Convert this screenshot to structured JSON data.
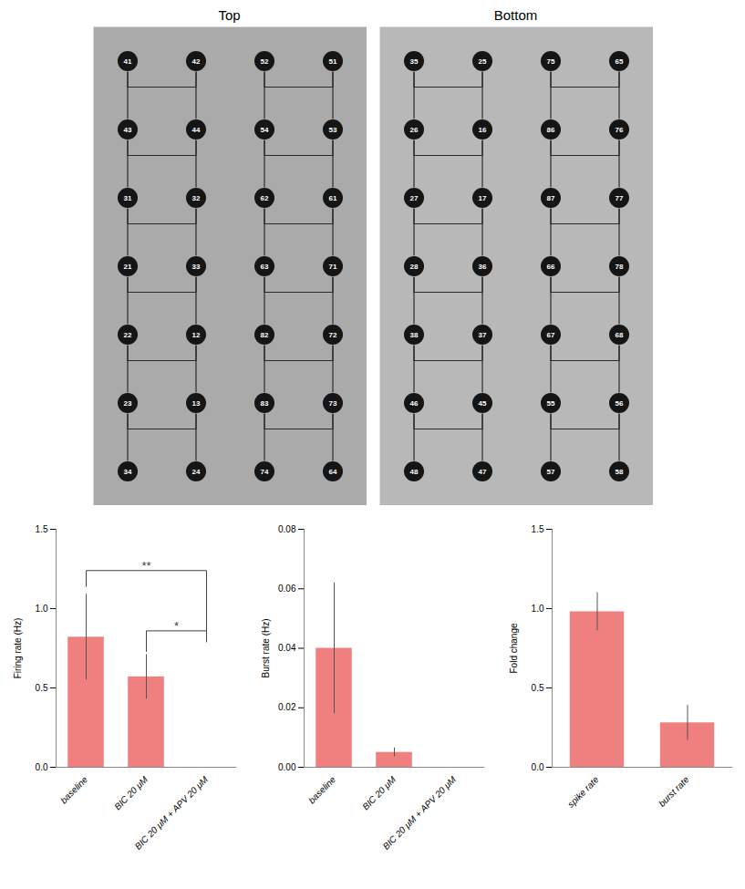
{
  "chart_data": [
    {
      "type": "electrode_map",
      "title": "Top",
      "color": "#aaaaaa",
      "labels": [
        "41",
        "42",
        "52",
        "51",
        "43",
        "44",
        "54",
        "53",
        "31",
        "32",
        "62",
        "61",
        "21",
        "33",
        "63",
        "71",
        "22",
        "12",
        "82",
        "72",
        "23",
        "13",
        "83",
        "73",
        "34",
        "24",
        "74",
        "64"
      ]
    },
    {
      "type": "electrode_map",
      "title": "Bottom",
      "color": "#b8b8b8",
      "labels": [
        "35",
        "25",
        "75",
        "65",
        "26",
        "16",
        "86",
        "76",
        "27",
        "17",
        "87",
        "77",
        "28",
        "36",
        "66",
        "78",
        "38",
        "37",
        "67",
        "68",
        "46",
        "45",
        "55",
        "56",
        "48",
        "47",
        "57",
        "58"
      ]
    },
    {
      "type": "bar",
      "color": "#F08080",
      "categories": [
        "baseline",
        "BIC 20 μM",
        "BIC 20 μM + APV 20 μM"
      ],
      "values": [
        0.82,
        0.57,
        0.0
      ],
      "errors": [
        0.27,
        0.14,
        0.0
      ],
      "ylabel": "Firing rate (Hz)",
      "ylim": [
        0,
        1.5
      ],
      "yticks": [
        {
          "value": 0,
          "label": "0.0"
        },
        0.5,
        {
          "value": 1,
          "label": "1.0"
        },
        1.5
      ],
      "annotations": [
        {
          "text": "**",
          "from": "baseline",
          "to": "BIC 20 μM + APV 20 μM",
          "y": 1.24,
          "ends": [
            1.14,
            0.79
          ],
          "color": "#444444"
        },
        {
          "text": "*",
          "from": "BIC 20 μM",
          "to": "BIC 20 μM + APV 20 μM",
          "y": 0.86,
          "ends": [
            0.73,
            0.86
          ],
          "color": "#444444"
        }
      ]
    },
    {
      "type": "bar",
      "color": "#F08080",
      "categories": [
        "baseline",
        "BIC 20 μM",
        "BIC 20 μM + APV 20 μM"
      ],
      "values": [
        0.04,
        0.005,
        0.0
      ],
      "errors": [
        0.022,
        0.0015,
        0.0
      ],
      "ylabel": "Burst rate (Hz)",
      "ylim": [
        0,
        0.08
      ],
      "yticks": [
        {
          "value": 0,
          "label": "0.00"
        },
        {
          "value": 0.02,
          "label": "0.02"
        },
        {
          "value": 0.04,
          "label": "0.04"
        },
        {
          "value": 0.06,
          "label": "0.06"
        },
        {
          "value": 0.08,
          "label": "0.08"
        }
      ]
    },
    {
      "type": "bar",
      "color": "#F08080",
      "categories": [
        "spike rate",
        "burst rate"
      ],
      "values": [
        0.98,
        0.28
      ],
      "errors": [
        0.12,
        0.11
      ],
      "ylabel": "Fold change",
      "ylim": [
        0,
        1.5
      ],
      "yticks": [
        {
          "value": 0,
          "label": "0.0"
        },
        0.5,
        {
          "value": 1,
          "label": "1.0"
        },
        1.5
      ]
    }
  ]
}
